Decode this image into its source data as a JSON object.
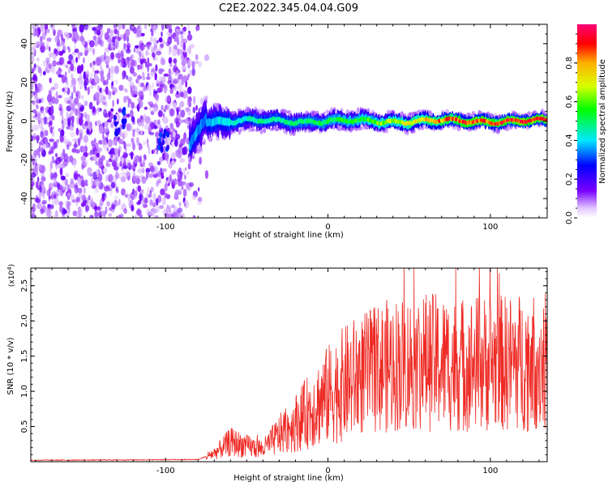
{
  "title": "C2E2.2022.345.04.04.G09",
  "colors": {
    "snr_line": "#ee2a24",
    "low_scatter": "#6a00f0"
  },
  "chart_data": [
    {
      "type": "heatmap",
      "xlabel": "Height of straight line (km)",
      "ylabel": "Frequency (Hz)",
      "xlim": [
        -183,
        135
      ],
      "ylim": [
        -50,
        50
      ],
      "x_ticks": [
        {
          "v": -100,
          "t": "-100"
        },
        {
          "v": 0,
          "t": "0"
        },
        {
          "v": 100,
          "t": "100"
        }
      ],
      "y_ticks": [
        {
          "v": 40,
          "t": "40"
        },
        {
          "v": 20,
          "t": "20"
        },
        {
          "v": 0,
          "t": "0"
        },
        {
          "v": -20,
          "t": "-20"
        },
        {
          "v": -40,
          "t": "-40"
        }
      ],
      "colorbar": {
        "label": "Normalized spectral amplitude",
        "range": [
          0,
          1
        ],
        "ticks": [
          {
            "v": 0.0,
            "t": "0.0"
          },
          {
            "v": 0.2,
            "t": "0.2"
          },
          {
            "v": 0.4,
            "t": "0.4"
          },
          {
            "v": 0.6,
            "t": "0.6"
          },
          {
            "v": 0.8,
            "t": "0.8"
          }
        ]
      },
      "features": {
        "noise_region_x": [
          -183,
          -85
        ],
        "signal_band": {
          "x": [
            -85,
            135
          ],
          "center_freq_hz": 0,
          "start_freq_hz": -12
        },
        "ridge_peak_amplitude": 0.95
      },
      "grid": false
    },
    {
      "type": "line",
      "xlabel": "Height of straight line (km)",
      "ylabel": "SNR (10 * v/v)",
      "y_multiplier": "(x10",
      "y_multiplier_exp": "4",
      "y_multiplier_close": ")",
      "xlim": [
        -183,
        135
      ],
      "ylim": [
        0,
        2.75
      ],
      "x_ticks": [
        {
          "v": -100,
          "t": "-100"
        },
        {
          "v": 0,
          "t": "0"
        },
        {
          "v": 100,
          "t": "100"
        }
      ],
      "y_ticks": [
        {
          "v": 0.5,
          "t": "0.5"
        },
        {
          "v": 1.0,
          "t": "1.0"
        },
        {
          "v": 1.5,
          "t": "1.5"
        },
        {
          "v": 2.0,
          "t": "2.0"
        },
        {
          "v": 2.5,
          "t": "2.5"
        }
      ],
      "envelope": [
        [
          -183,
          0.02
        ],
        [
          -80,
          0.03
        ],
        [
          -70,
          0.12
        ],
        [
          -60,
          0.28
        ],
        [
          -50,
          0.22
        ],
        [
          -40,
          0.18
        ],
        [
          -30,
          0.38
        ],
        [
          -20,
          0.55
        ],
        [
          -10,
          0.75
        ],
        [
          0,
          0.95
        ],
        [
          10,
          1.1
        ],
        [
          20,
          1.22
        ],
        [
          30,
          1.32
        ],
        [
          40,
          1.38
        ],
        [
          50,
          1.4
        ],
        [
          60,
          1.42
        ],
        [
          70,
          1.4
        ],
        [
          80,
          1.38
        ],
        [
          90,
          1.4
        ],
        [
          100,
          1.4
        ],
        [
          110,
          1.4
        ],
        [
          120,
          1.42
        ],
        [
          135,
          1.42
        ]
      ],
      "grid": false
    }
  ]
}
